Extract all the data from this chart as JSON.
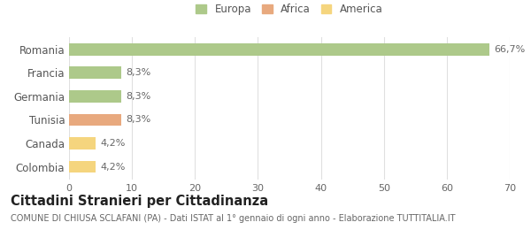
{
  "categories": [
    "Romania",
    "Francia",
    "Germania",
    "Tunisia",
    "Canada",
    "Colombia"
  ],
  "values": [
    66.7,
    8.3,
    8.3,
    8.3,
    4.2,
    4.2
  ],
  "labels": [
    "66,7%",
    "8,3%",
    "8,3%",
    "8,3%",
    "4,2%",
    "4,2%"
  ],
  "bar_colors": [
    "#adc98a",
    "#adc98a",
    "#adc98a",
    "#e8a97e",
    "#f5d57e",
    "#f5d57e"
  ],
  "legend_items": [
    {
      "label": "Europa",
      "color": "#adc98a"
    },
    {
      "label": "Africa",
      "color": "#e8a97e"
    },
    {
      "label": "America",
      "color": "#f5d57e"
    }
  ],
  "xlim": [
    0,
    70
  ],
  "xticks": [
    0,
    10,
    20,
    30,
    40,
    50,
    60,
    70
  ],
  "title": "Cittadini Stranieri per Cittadinanza",
  "subtitle": "COMUNE DI CHIUSA SCLAFANI (PA) - Dati ISTAT al 1° gennaio di ogni anno - Elaborazione TUTTITALIA.IT",
  "background_color": "#ffffff",
  "grid_color": "#e0e0e0",
  "bar_height": 0.52,
  "label_fontsize": 8,
  "ytick_fontsize": 8.5,
  "xtick_fontsize": 8,
  "title_fontsize": 10.5,
  "subtitle_fontsize": 7,
  "legend_fontsize": 8.5
}
